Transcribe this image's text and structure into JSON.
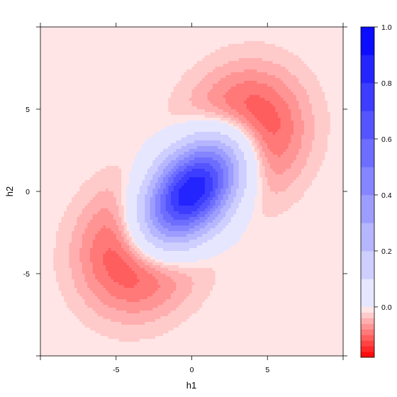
{
  "chart_data": {
    "type": "heatmap",
    "title": "",
    "xlabel": "h1",
    "ylabel": "h2",
    "xlim": [
      -10,
      10
    ],
    "ylim": [
      -10,
      10
    ],
    "x_ticks": [
      -5,
      0,
      5
    ],
    "y_ticks": [
      -5,
      0,
      5
    ],
    "x_tick_labels": [
      "-5",
      "0",
      "5"
    ],
    "y_tick_labels": [
      "-5",
      "0",
      "5"
    ],
    "grid": false,
    "colorbar": {
      "placement": "right",
      "range": [
        -0.18,
        1.0
      ],
      "ticks": [
        0.0,
        0.2,
        0.4,
        0.6,
        0.8,
        1.0
      ],
      "tick_labels": [
        "0.0",
        "0.2",
        "0.4",
        "0.6",
        "0.8",
        "1.0"
      ],
      "positive_steps": 0.1,
      "negative_steps": 0.02,
      "positive_color": "#0000ff",
      "negative_color": "#ff0000",
      "zero_color": "#ffffff"
    },
    "features": [
      {
        "kind": "peak",
        "h1": 0.0,
        "h2": 0.0,
        "value": 1.0
      },
      {
        "kind": "trough",
        "h1": 3.3,
        "h2": 3.3,
        "value": -0.18
      },
      {
        "kind": "trough",
        "h1": -3.3,
        "h2": -3.3,
        "value": -0.18
      }
    ]
  }
}
